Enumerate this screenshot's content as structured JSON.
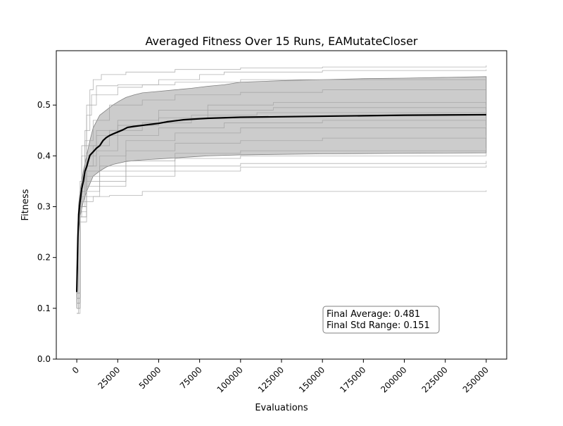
{
  "chart_data": {
    "type": "line",
    "title": "Averaged Fitness Over 15 Runs, EAMutateCloser",
    "xlabel": "Evaluations",
    "ylabel": "Fitness",
    "xlim": [
      -12500,
      262500
    ],
    "ylim": [
      0.0,
      0.607
    ],
    "xticks": [
      0,
      25000,
      50000,
      75000,
      100000,
      125000,
      150000,
      175000,
      200000,
      225000,
      250000
    ],
    "yticks": [
      0.0,
      0.1,
      0.2,
      0.3,
      0.4,
      0.5
    ],
    "ytick_labels": [
      "0.0",
      "0.1",
      "0.2",
      "0.3",
      "0.4",
      "0.5"
    ],
    "grid": false,
    "colors": {
      "average": "#000000",
      "runs": "#a0a0a0",
      "band_fill": "#cccccc",
      "band_edge": "#808080"
    },
    "series": [
      {
        "role": "average",
        "points": [
          [
            0,
            0.132
          ],
          [
            300,
            0.18
          ],
          [
            700,
            0.24
          ],
          [
            1200,
            0.285
          ],
          [
            2000,
            0.31
          ],
          [
            3000,
            0.335
          ],
          [
            4000,
            0.35
          ],
          [
            5000,
            0.37
          ],
          [
            6000,
            0.378
          ],
          [
            7000,
            0.39
          ],
          [
            8000,
            0.401
          ],
          [
            10000,
            0.408
          ],
          [
            12000,
            0.415
          ],
          [
            14000,
            0.42
          ],
          [
            16000,
            0.43
          ],
          [
            18000,
            0.436
          ],
          [
            20000,
            0.44
          ],
          [
            22000,
            0.443
          ],
          [
            25000,
            0.447
          ],
          [
            28000,
            0.451
          ],
          [
            31000,
            0.456
          ],
          [
            35000,
            0.458
          ],
          [
            40000,
            0.46
          ],
          [
            45000,
            0.462
          ],
          [
            50000,
            0.464
          ],
          [
            55000,
            0.467
          ],
          [
            60000,
            0.469
          ],
          [
            65000,
            0.471
          ],
          [
            70000,
            0.472
          ],
          [
            75000,
            0.473
          ],
          [
            80000,
            0.474
          ],
          [
            90000,
            0.475
          ],
          [
            100000,
            0.476
          ],
          [
            125000,
            0.477
          ],
          [
            150000,
            0.478
          ],
          [
            175000,
            0.479
          ],
          [
            200000,
            0.48
          ],
          [
            250000,
            0.481
          ]
        ]
      },
      {
        "role": "std_band",
        "upper": [
          [
            0,
            0.165
          ],
          [
            1000,
            0.3
          ],
          [
            2000,
            0.33
          ],
          [
            4000,
            0.37
          ],
          [
            6000,
            0.4
          ],
          [
            8000,
            0.43
          ],
          [
            10000,
            0.455
          ],
          [
            14000,
            0.48
          ],
          [
            18000,
            0.49
          ],
          [
            22000,
            0.5
          ],
          [
            26000,
            0.508
          ],
          [
            30000,
            0.515
          ],
          [
            35000,
            0.52
          ],
          [
            40000,
            0.524
          ],
          [
            50000,
            0.527
          ],
          [
            60000,
            0.53
          ],
          [
            70000,
            0.533
          ],
          [
            80000,
            0.537
          ],
          [
            90000,
            0.54
          ],
          [
            100000,
            0.545
          ],
          [
            125000,
            0.548
          ],
          [
            150000,
            0.55
          ],
          [
            175000,
            0.552
          ],
          [
            200000,
            0.553
          ],
          [
            250000,
            0.556
          ]
        ],
        "lower": [
          [
            0,
            0.1
          ],
          [
            1000,
            0.25
          ],
          [
            2000,
            0.28
          ],
          [
            4000,
            0.31
          ],
          [
            6000,
            0.33
          ],
          [
            8000,
            0.345
          ],
          [
            10000,
            0.36
          ],
          [
            14000,
            0.37
          ],
          [
            18000,
            0.378
          ],
          [
            22000,
            0.383
          ],
          [
            26000,
            0.386
          ],
          [
            30000,
            0.389
          ],
          [
            40000,
            0.392
          ],
          [
            50000,
            0.394
          ],
          [
            60000,
            0.396
          ],
          [
            70000,
            0.398
          ],
          [
            80000,
            0.4
          ],
          [
            100000,
            0.402
          ],
          [
            125000,
            0.403
          ],
          [
            150000,
            0.404
          ],
          [
            200000,
            0.405
          ],
          [
            250000,
            0.406
          ]
        ]
      },
      {
        "role": "run",
        "points": [
          [
            0,
            0.09
          ],
          [
            1000,
            0.3
          ],
          [
            3000,
            0.42
          ],
          [
            6000,
            0.5
          ],
          [
            8000,
            0.53
          ],
          [
            10000,
            0.55
          ],
          [
            15000,
            0.56
          ],
          [
            30000,
            0.565
          ],
          [
            60000,
            0.57
          ],
          [
            100000,
            0.573
          ],
          [
            150000,
            0.575
          ],
          [
            250000,
            0.578
          ]
        ]
      },
      {
        "role": "run",
        "points": [
          [
            0,
            0.1
          ],
          [
            1000,
            0.28
          ],
          [
            3000,
            0.4
          ],
          [
            6000,
            0.48
          ],
          [
            9000,
            0.52
          ],
          [
            12000,
            0.538
          ],
          [
            25000,
            0.54
          ],
          [
            50000,
            0.55
          ],
          [
            75000,
            0.56
          ],
          [
            90000,
            0.565
          ],
          [
            150000,
            0.568
          ],
          [
            250000,
            0.57
          ]
        ]
      },
      {
        "role": "run",
        "points": [
          [
            0,
            0.11
          ],
          [
            2000,
            0.35
          ],
          [
            5000,
            0.45
          ],
          [
            8000,
            0.5
          ],
          [
            12000,
            0.52
          ],
          [
            25000,
            0.535
          ],
          [
            40000,
            0.54
          ],
          [
            60000,
            0.545
          ],
          [
            100000,
            0.55
          ],
          [
            250000,
            0.552
          ]
        ]
      },
      {
        "role": "run",
        "points": [
          [
            0,
            0.12
          ],
          [
            2000,
            0.33
          ],
          [
            5000,
            0.43
          ],
          [
            10000,
            0.47
          ],
          [
            20000,
            0.5
          ],
          [
            40000,
            0.51
          ],
          [
            60000,
            0.52
          ],
          [
            100000,
            0.525
          ],
          [
            150000,
            0.53
          ],
          [
            250000,
            0.53
          ]
        ]
      },
      {
        "role": "run",
        "points": [
          [
            0,
            0.13
          ],
          [
            2000,
            0.33
          ],
          [
            6000,
            0.42
          ],
          [
            12000,
            0.45
          ],
          [
            25000,
            0.47
          ],
          [
            50000,
            0.49
          ],
          [
            80000,
            0.5
          ],
          [
            120000,
            0.505
          ],
          [
            250000,
            0.51
          ]
        ]
      },
      {
        "role": "run",
        "points": [
          [
            0,
            0.12
          ],
          [
            2000,
            0.32
          ],
          [
            6000,
            0.4
          ],
          [
            12000,
            0.44
          ],
          [
            25000,
            0.46
          ],
          [
            50000,
            0.475
          ],
          [
            80000,
            0.49
          ],
          [
            120000,
            0.495
          ],
          [
            250000,
            0.5
          ]
        ]
      },
      {
        "role": "run",
        "points": [
          [
            0,
            0.1
          ],
          [
            2000,
            0.3
          ],
          [
            5000,
            0.38
          ],
          [
            10000,
            0.42
          ],
          [
            20000,
            0.45
          ],
          [
            40000,
            0.465
          ],
          [
            70000,
            0.48
          ],
          [
            110000,
            0.485
          ],
          [
            250000,
            0.49
          ]
        ]
      },
      {
        "role": "run",
        "points": [
          [
            0,
            0.11
          ],
          [
            2000,
            0.31
          ],
          [
            6000,
            0.38
          ],
          [
            12000,
            0.41
          ],
          [
            25000,
            0.44
          ],
          [
            50000,
            0.455
          ],
          [
            90000,
            0.465
          ],
          [
            150000,
            0.47
          ],
          [
            250000,
            0.475
          ]
        ]
      },
      {
        "role": "run",
        "points": [
          [
            0,
            0.12
          ],
          [
            2000,
            0.3
          ],
          [
            6000,
            0.37
          ],
          [
            14000,
            0.4
          ],
          [
            30000,
            0.43
          ],
          [
            60000,
            0.445
          ],
          [
            100000,
            0.455
          ],
          [
            250000,
            0.46
          ]
        ]
      },
      {
        "role": "run",
        "points": [
          [
            0,
            0.1
          ],
          [
            2000,
            0.3
          ],
          [
            6000,
            0.36
          ],
          [
            14000,
            0.38
          ],
          [
            30000,
            0.41
          ],
          [
            60000,
            0.425
          ],
          [
            100000,
            0.43
          ],
          [
            150000,
            0.435
          ],
          [
            250000,
            0.44
          ]
        ]
      },
      {
        "role": "run",
        "points": [
          [
            0,
            0.11
          ],
          [
            2000,
            0.28
          ],
          [
            6000,
            0.35
          ],
          [
            14000,
            0.37
          ],
          [
            30000,
            0.39
          ],
          [
            60000,
            0.405
          ],
          [
            100000,
            0.41
          ],
          [
            250000,
            0.415
          ]
        ]
      },
      {
        "role": "run",
        "points": [
          [
            0,
            0.13
          ],
          [
            2000,
            0.3
          ],
          [
            6000,
            0.34
          ],
          [
            14000,
            0.36
          ],
          [
            30000,
            0.38
          ],
          [
            60000,
            0.395
          ],
          [
            100000,
            0.4
          ],
          [
            250000,
            0.405
          ]
        ]
      },
      {
        "role": "run",
        "points": [
          [
            0,
            0.12
          ],
          [
            2000,
            0.29
          ],
          [
            6000,
            0.33
          ],
          [
            14000,
            0.35
          ],
          [
            30000,
            0.37
          ],
          [
            60000,
            0.38
          ],
          [
            100000,
            0.385
          ],
          [
            250000,
            0.39
          ]
        ]
      },
      {
        "role": "run",
        "points": [
          [
            0,
            0.1
          ],
          [
            2000,
            0.28
          ],
          [
            6000,
            0.32
          ],
          [
            14000,
            0.34
          ],
          [
            30000,
            0.36
          ],
          [
            60000,
            0.37
          ],
          [
            100000,
            0.378
          ],
          [
            250000,
            0.382
          ]
        ]
      },
      {
        "role": "run",
        "points": [
          [
            0,
            0.09
          ],
          [
            2000,
            0.27
          ],
          [
            6000,
            0.31
          ],
          [
            10000,
            0.32
          ],
          [
            20000,
            0.322
          ],
          [
            40000,
            0.33
          ],
          [
            80000,
            0.33
          ],
          [
            250000,
            0.332
          ]
        ]
      }
    ],
    "annotation": {
      "line1": "Final Average: 0.481",
      "line2": "Final Std Range: 0.151"
    }
  }
}
